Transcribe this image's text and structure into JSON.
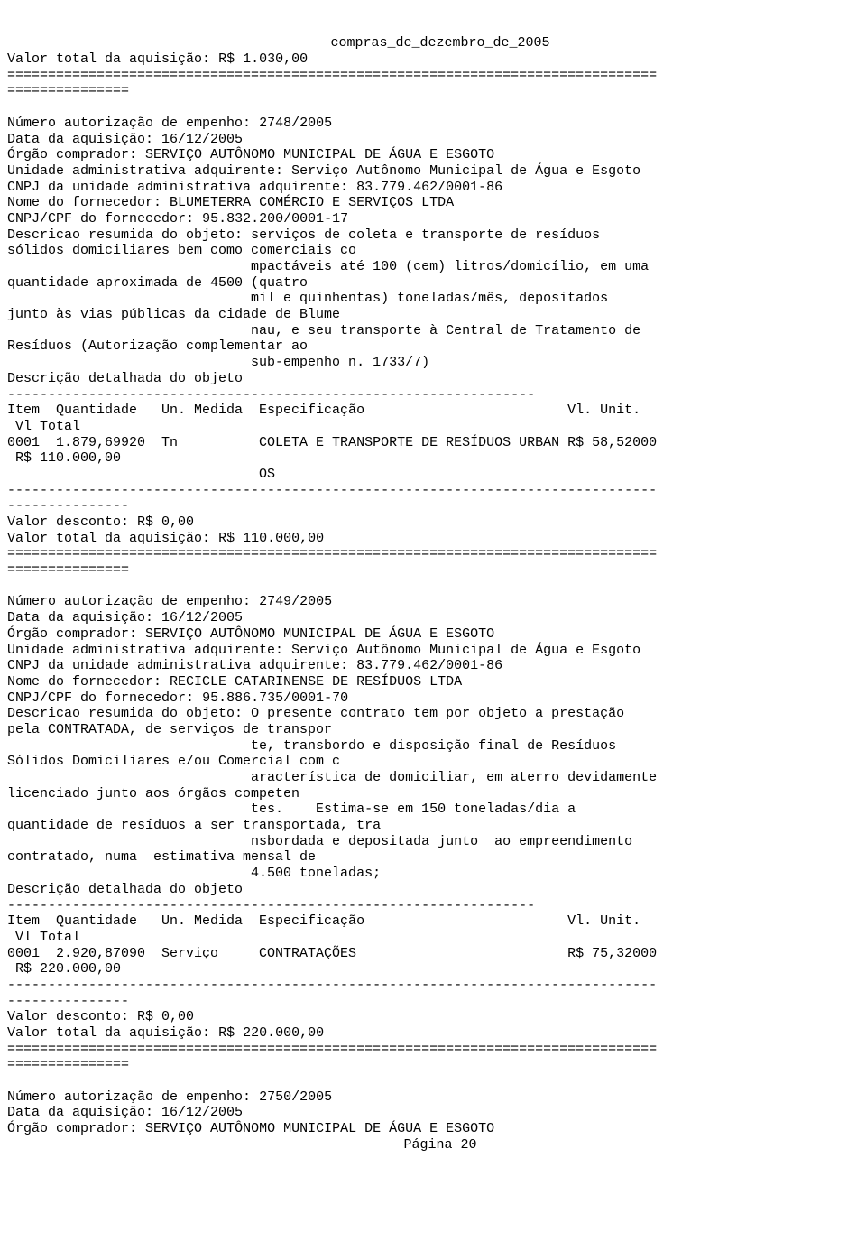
{
  "page": {
    "title": "compras_de_dezembro_de_2005",
    "footer": "Página 20",
    "rule_eq80": "================================================================================",
    "rule_eq15": "===============",
    "rule_dash65": "-----------------------------------------------------------------",
    "rule_dash80": "--------------------------------------------------------------------------------",
    "rule_dash15": "---------------"
  },
  "labels": {
    "valor_total": "Valor total da aquisição:",
    "valor_desconto": "Valor desconto:",
    "numero_autorizacao": "Número autorização de empenho:",
    "data_aquisicao": "Data da aquisição:",
    "orgao_comprador": "Órgão comprador:",
    "unidade_adm": "Unidade administrativa adquirente:",
    "cnpj_unidade": "CNPJ da unidade administrativa adquirente:",
    "nome_fornecedor": "Nome do fornecedor:",
    "cnpj_cpf_fornecedor": "CNPJ/CPF do fornecedor:",
    "descricao_resumida": "Descricao resumida do objeto:",
    "descricao_detalhada": "Descrição detalhada do objeto",
    "header_items": "Item  Quantidade   Un. Medida  Especificação                         Vl. Unit.",
    "header_vl_total": " Vl Total"
  },
  "top": {
    "valor_total": "R$ 1.030,00"
  },
  "rec1": {
    "numero": "2748/2005",
    "data": "16/12/2005",
    "orgao": "SERVIÇO AUTÔNOMO MUNICIPAL DE ÁGUA E ESGOTO",
    "unidade": "Serviço Autônomo Municipal de Água e Esgoto",
    "cnpj_unidade": "83.779.462/0001-86",
    "fornecedor": "BLUMETERRA COMÉRCIO E SERVIÇOS LTDA",
    "cnpj_fornecedor": "95.832.200/0001-17",
    "desc_l1": "serviços de coleta e transporte de resíduos",
    "desc_l2": "sólidos domiciliares bem como comerciais co",
    "desc_l3": "                              mpactáveis até 100 (cem) litros/domicílio, em uma",
    "desc_l4": "quantidade aproximada de 4500 (quatro",
    "desc_l5": "                              mil e quinhentas) toneladas/mês, depositados",
    "desc_l6": "junto às vias públicas da cidade de Blume",
    "desc_l7": "                              nau, e seu transporte à Central de Tratamento de",
    "desc_l8": "Resíduos (Autorização complementar ao",
    "desc_l9": "                              sub-empenho n. 1733/7)",
    "item_l1": "0001  1.879,69920  Tn          COLETA E TRANSPORTE DE RESÍDUOS URBAN R$ 58,52000",
    "item_l2": " R$ 110.000,00",
    "item_l3": "                               OS",
    "valor_desconto": "R$ 0,00",
    "valor_total": "R$ 110.000,00"
  },
  "rec2": {
    "numero": "2749/2005",
    "data": "16/12/2005",
    "orgao": "SERVIÇO AUTÔNOMO MUNICIPAL DE ÁGUA E ESGOTO",
    "unidade": "Serviço Autônomo Municipal de Água e Esgoto",
    "cnpj_unidade": "83.779.462/0001-86",
    "fornecedor": "RECICLE CATARINENSE DE RESÍDUOS LTDA",
    "cnpj_fornecedor": "95.886.735/0001-70",
    "desc_l1": "O presente contrato tem por objeto a prestação",
    "desc_l2": "pela CONTRATADA, de serviços de transpor",
    "desc_l3": "                              te, transbordo e disposição final de Resíduos",
    "desc_l4": "Sólidos Domiciliares e/ou Comercial com c",
    "desc_l5": "                              aracterística de domiciliar, em aterro devidamente",
    "desc_l6": "licenciado junto aos órgãos competen",
    "desc_l7": "                              tes.    Estima-se em 150 toneladas/dia a",
    "desc_l8": "quantidade de resíduos a ser transportada, tra",
    "desc_l9": "                              nsbordada e depositada junto  ao empreendimento",
    "desc_l10": "contratado, numa  estimativa mensal de",
    "desc_l11": "                              4.500 toneladas;",
    "item_l1": "0001  2.920,87090  Serviço     CONTRATAÇÕES                          R$ 75,32000",
    "item_l2": " R$ 220.000,00",
    "valor_desconto": "R$ 0,00",
    "valor_total": "R$ 220.000,00"
  },
  "rec3": {
    "numero": "2750/2005",
    "data": "16/12/2005",
    "orgao": "SERVIÇO AUTÔNOMO MUNICIPAL DE ÁGUA E ESGOTO"
  }
}
